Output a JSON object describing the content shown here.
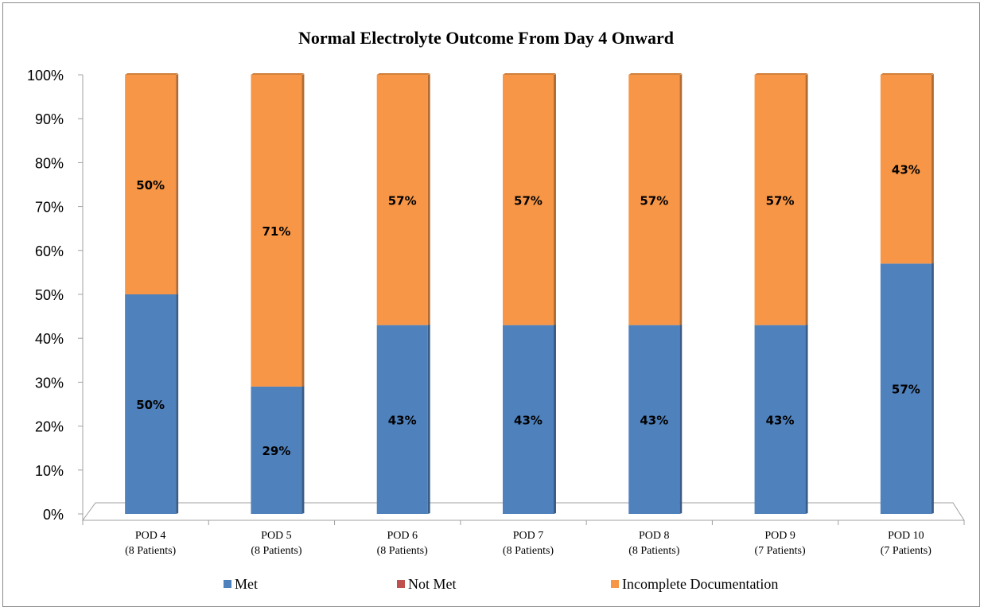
{
  "chart_data": {
    "type": "bar",
    "stacked": true,
    "title": "Normal Electrolyte Outcome From Day 4 Onward",
    "xlabel": "",
    "ylabel": "",
    "ylim": [
      0,
      100
    ],
    "y_ticks": [
      "0%",
      "10%",
      "20%",
      "30%",
      "40%",
      "50%",
      "60%",
      "70%",
      "80%",
      "90%",
      "100%"
    ],
    "categories": [
      {
        "line1": "POD 4",
        "line2": "(8 Patients)"
      },
      {
        "line1": "POD 5",
        "line2": "(8 Patients)"
      },
      {
        "line1": "POD 6",
        "line2": "(8 Patients)"
      },
      {
        "line1": "POD 7",
        "line2": "(8 Patients)"
      },
      {
        "line1": "POD 8",
        "line2": "(8 Patients)"
      },
      {
        "line1": "POD 9",
        "line2": "(7 Patients)"
      },
      {
        "line1": "POD 10",
        "line2": "(7 Patients)"
      }
    ],
    "series": [
      {
        "name": "Met",
        "color": "#4F81BD",
        "values": [
          50,
          29,
          43,
          43,
          43,
          43,
          57
        ],
        "labels": [
          "50%",
          "29%",
          "43%",
          "43%",
          "43%",
          "43%",
          "57%"
        ]
      },
      {
        "name": "Not Met",
        "color": "#C0504D",
        "values": [
          0,
          0,
          0,
          0,
          0,
          0,
          0
        ],
        "labels": [
          "",
          "",
          "",
          "",
          "",
          "",
          ""
        ]
      },
      {
        "name": "Incomplete Documentation",
        "color": "#F79646",
        "values": [
          50,
          71,
          57,
          57,
          57,
          57,
          43
        ],
        "labels": [
          "50%",
          "71%",
          "57%",
          "57%",
          "57%",
          "57%",
          "43%"
        ]
      }
    ],
    "legend_position": "bottom",
    "grid": false
  }
}
